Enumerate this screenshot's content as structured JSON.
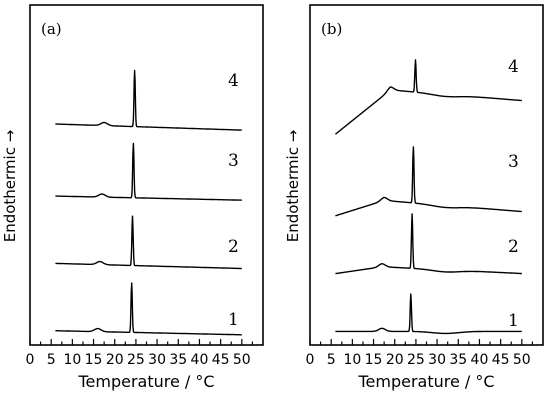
{
  "chart_data": [
    {
      "type": "line",
      "panel_label": "(a)",
      "xlabel": "Temperature / °C",
      "ylabel": "Endothermic →",
      "xlim": [
        0,
        55
      ],
      "xticks": [
        "0",
        "5",
        "10",
        "15",
        "20",
        "25",
        "30",
        "35",
        "40",
        "45",
        "50"
      ],
      "grid": false,
      "series": [
        {
          "name": "1",
          "baseline_min": 0.03,
          "shoulder_x": 16,
          "peak_x": 24,
          "peak_height": 0.145
        },
        {
          "name": "2",
          "baseline_min": 0.23,
          "shoulder_x": 16.5,
          "peak_x": 24.2,
          "peak_height": 0.145
        },
        {
          "name": "3",
          "baseline_min": 0.43,
          "shoulder_x": 17,
          "peak_x": 24.4,
          "peak_height": 0.16
        },
        {
          "name": "4",
          "baseline_min": 0.64,
          "shoulder_x": 17.5,
          "peak_x": 24.7,
          "peak_height": 0.165
        }
      ]
    },
    {
      "type": "line",
      "panel_label": "(b)",
      "xlabel": "Temperature / °C",
      "ylabel": "Endothermic →",
      "xlim": [
        0,
        55
      ],
      "xticks": [
        "0",
        "5",
        "10",
        "15",
        "20",
        "25",
        "30",
        "35",
        "40",
        "45",
        "50"
      ],
      "grid": false,
      "series": [
        {
          "name": "1",
          "baseline_min": 0.04,
          "shoulder_x": 17,
          "peak_x": 23.8,
          "peak_height": 0.11
        },
        {
          "name": "2",
          "baseline_min": 0.21,
          "shoulder_x": 17,
          "peak_x": 24.1,
          "peak_height": 0.16
        },
        {
          "name": "3",
          "baseline_min": 0.38,
          "shoulder_x": 17.5,
          "peak_x": 24.4,
          "peak_height": 0.165
        },
        {
          "name": "4",
          "baseline_min": 0.62,
          "shoulder_x": 19,
          "peak_x": 24.9,
          "peak_height": 0.095
        }
      ]
    }
  ]
}
